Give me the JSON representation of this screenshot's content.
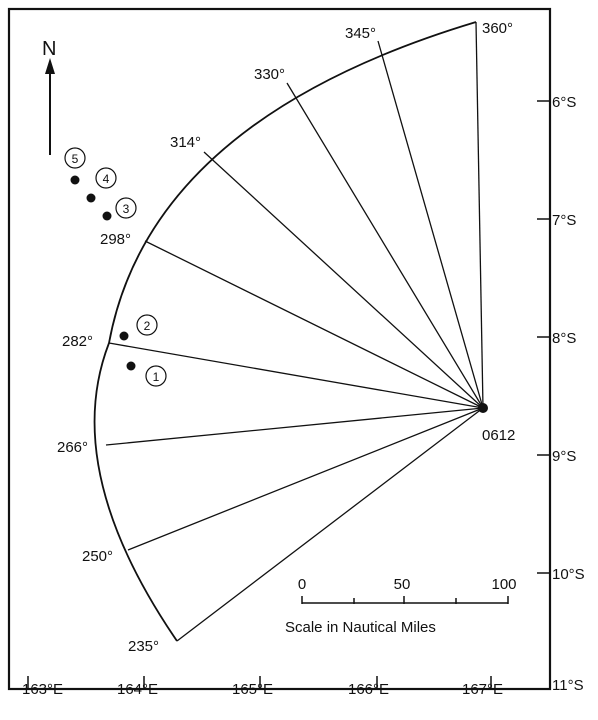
{
  "north_label": "N",
  "origin_label": "0612",
  "bearing_labels": [
    "235°",
    "250°",
    "266°",
    "282°",
    "298°",
    "314°",
    "330°",
    "345°",
    "360°"
  ],
  "longitude_labels": [
    "163°E",
    "164°E",
    "165°E",
    "166°E",
    "167°E"
  ],
  "latitude_labels": [
    "6°S",
    "7°S",
    "8°S",
    "9°S",
    "10°S",
    "11°S"
  ],
  "points": [
    {
      "label": "1"
    },
    {
      "label": "2"
    },
    {
      "label": "3"
    },
    {
      "label": "4"
    },
    {
      "label": "5"
    }
  ],
  "scale": {
    "caption": "Scale in Nautical Miles",
    "tick_labels": [
      "0",
      "50",
      "100"
    ]
  },
  "colors": {
    "ink": "#111111",
    "paper": "#ffffff"
  }
}
